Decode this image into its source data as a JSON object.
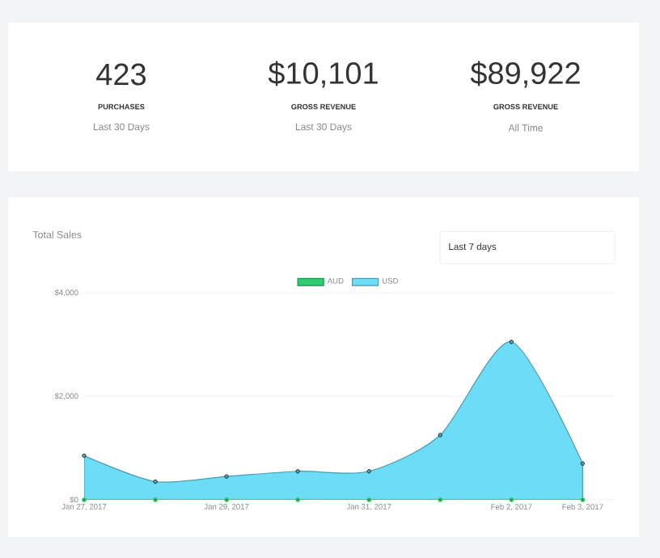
{
  "chart_data": [
    {
      "type": "other",
      "annotations": [
        "423",
        "PURCHASES",
        "Last 30 Days",
        "$10,101",
        "GROSS REVENUE",
        "Last 30 Days",
        "$89,922",
        "GROSS REVENUE",
        "All Time"
      ]
    },
    {
      "type": "area",
      "title": "Total Sales",
      "annotations": [
        "Last 7 days"
      ],
      "categories": [
        "Jan 27, 2017",
        null,
        "Jan 29, 2017",
        null,
        "Jan 31, 2017",
        null,
        "Feb 2, 2017",
        "Feb 3, 2017"
      ],
      "series": [
        {
          "name": "AUD",
          "type": "line",
          "color": "#2ecc71",
          "values": [
            0,
            0,
            0,
            0,
            0,
            0,
            0,
            0
          ]
        },
        {
          "name": "USD",
          "color": "#6ddcf6",
          "values": [
            850,
            350,
            450,
            550,
            550,
            1250,
            3050,
            700
          ]
        }
      ],
      "ylim": [
        0,
        4000
      ],
      "yticks": [
        {
          "value": 0,
          "label": "$0"
        },
        {
          "value": 2000,
          "label": "$2,000"
        },
        {
          "value": 4000,
          "label": "$4,000"
        }
      ],
      "grid": "y",
      "legend": "top",
      "marker": "circle"
    }
  ]
}
